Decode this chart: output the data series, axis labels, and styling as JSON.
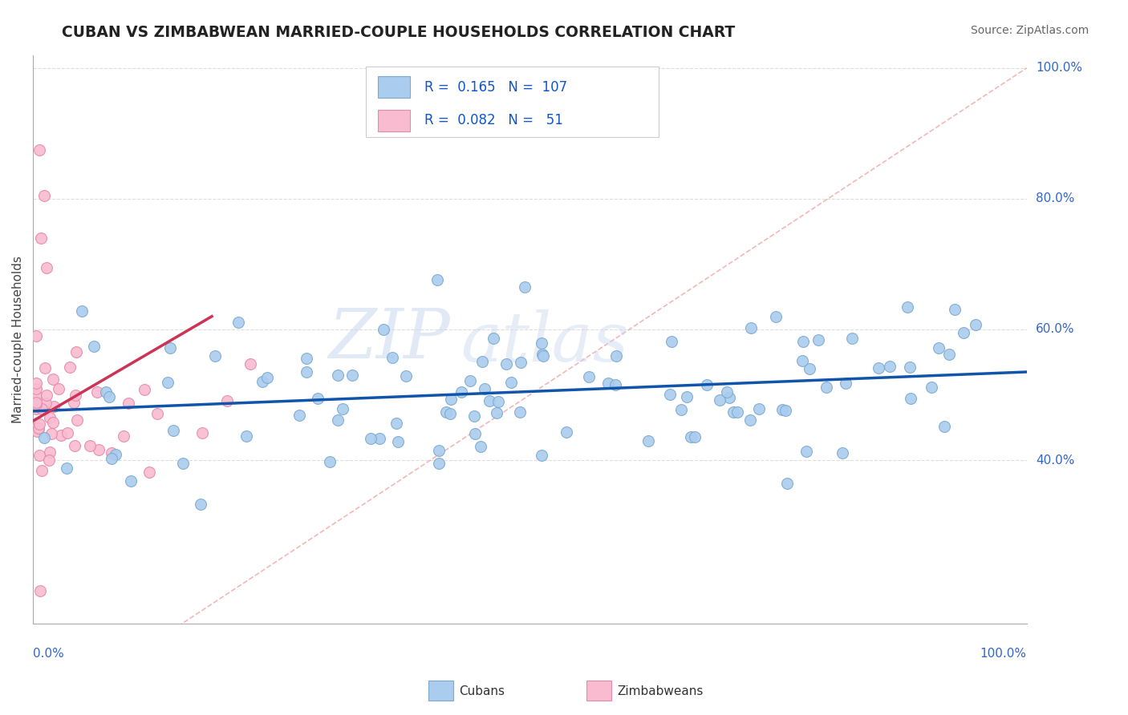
{
  "title": "CUBAN VS ZIMBABWEAN MARRIED-COUPLE HOUSEHOLDS CORRELATION CHART",
  "source": "Source: ZipAtlas.com",
  "ylabel": "Married-couple Households",
  "legend_cubans_R": "0.165",
  "legend_cubans_N": "107",
  "legend_zimbabweans_R": "0.082",
  "legend_zimbabweans_N": "51",
  "legend_label_cubans": "Cubans",
  "legend_label_zimbabweans": "Zimbabweans",
  "cuban_color": "#aaccee",
  "cuban_edge": "#7aaad0",
  "cuban_line_color": "#1155aa",
  "zimbabwe_color": "#f8bbd0",
  "zimbabwe_edge": "#e888aa",
  "zimbabwe_line_color": "#cc3355",
  "diagonal_color": "#ee9999",
  "watermark_zip": "ZIP",
  "watermark_atlas": "atlas",
  "ytick_values": [
    0.4,
    0.6,
    0.8,
    1.0
  ],
  "ytick_labels": [
    "40.0%",
    "60.0%",
    "80.0%",
    "100.0%"
  ],
  "xlim": [
    0.0,
    1.0
  ],
  "ylim_data_min": 0.15,
  "ylim_data_max": 1.02,
  "cuban_trend_x0": 0.0,
  "cuban_trend_y0": 0.475,
  "cuban_trend_x1": 1.0,
  "cuban_trend_y1": 0.535,
  "zimb_trend_x0": 0.0,
  "zimb_trend_y0": 0.46,
  "zimb_trend_x1": 0.18,
  "zimb_trend_y1": 0.62
}
